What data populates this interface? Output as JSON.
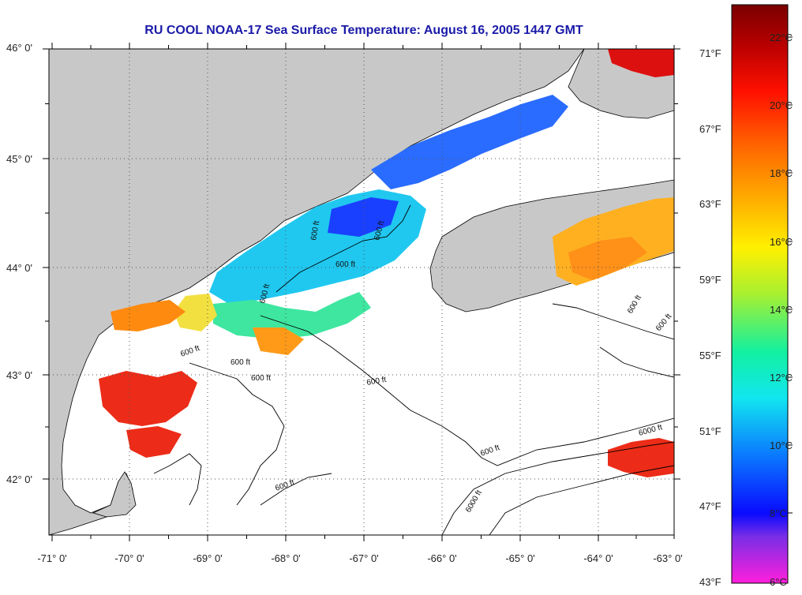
{
  "title": "RU COOL  NOAA-17  Sea Surface Temperature:  August 16, 2005 1447 GMT",
  "lat_labels": [
    "46° 0'",
    "45° 0'",
    "44° 0'",
    "43° 0'",
    "42° 0'"
  ],
  "lon_labels": [
    "-71° 0'",
    "-70° 0'",
    "-69° 0'",
    "-68° 0'",
    "-67° 0'",
    "-66° 0'",
    "-65° 0'",
    "-64° 0'",
    "-63° 0'"
  ],
  "fahrenheit_labels": [
    "71°F",
    "67°F",
    "63°F",
    "59°F",
    "55°F",
    "51°F",
    "47°F",
    "43°F"
  ],
  "celsius_labels": [
    "22°C",
    "20°C",
    "18°C",
    "16°C",
    "14°C",
    "12°C",
    "10°C",
    "8°C",
    "6°C"
  ],
  "contour_labels": [
    "600 ft",
    "600 ft",
    "600 ft",
    "600 ft",
    "600 ft",
    "600 ft",
    "600 ft",
    "600 ft",
    "600 ft",
    "600 ft",
    "600 ft",
    "6000 ft",
    "6000 ft",
    "600 ft"
  ],
  "colors": {
    "land": "#c8c8c8",
    "water_nodata": "#ffffff",
    "title": "#1a1aa8",
    "colorbar": [
      "#ff1fdc",
      "#7a2ee6",
      "#0a0aff",
      "#0a78ff",
      "#12e6f0",
      "#12f0a0",
      "#a8f030",
      "#fff000",
      "#ffb000",
      "#ff6a00",
      "#ff1000",
      "#b80000",
      "#7a0000"
    ]
  }
}
